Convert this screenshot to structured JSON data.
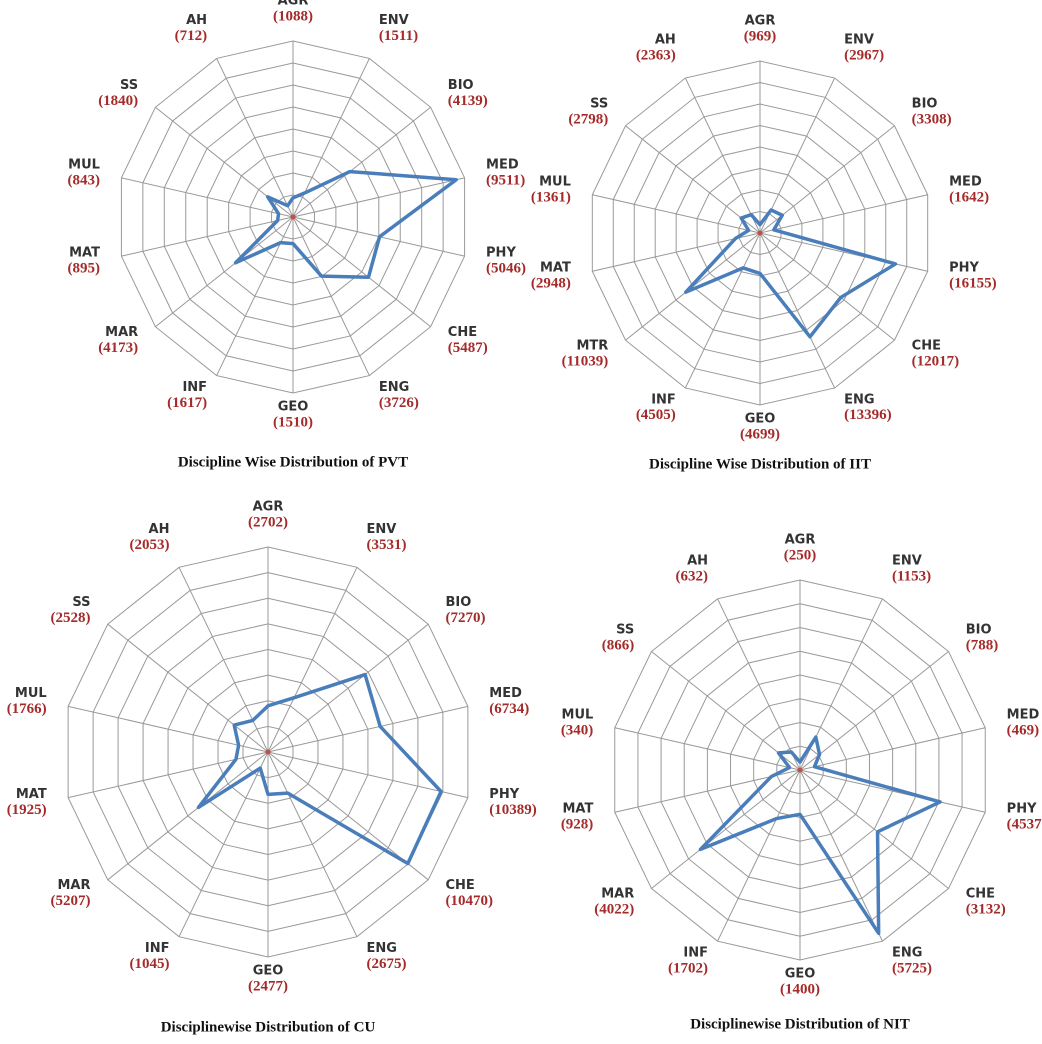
{
  "chart_data": [
    {
      "type": "radar",
      "title": "Discipline Wise Distribution of PVT",
      "categories": [
        "AGR",
        "ENV",
        "BIO",
        "MED",
        "PHY",
        "CHE",
        "ENG",
        "GEO",
        "INF",
        "MAR",
        "MAT",
        "MUL",
        "SS",
        "AH"
      ],
      "values": [
        1088,
        1511,
        4139,
        9511,
        5046,
        5487,
        3726,
        1510,
        1617,
        4173,
        895,
        843,
        1840,
        712
      ],
      "value_labels": [
        "(1088)",
        "(1511)",
        "(4139)",
        "(9511)",
        "(5046)",
        "(5487)",
        "(3726)",
        "(1510)",
        "(1617)",
        "(4173)",
        "(895)",
        "(843)",
        "(1840)",
        "(712)"
      ],
      "color": "#4a7ebb",
      "rlim": [
        0,
        10000
      ]
    },
    {
      "type": "radar",
      "title": "Discipline Wise Distribution of IIT",
      "categories": [
        "AGR",
        "ENV",
        "BIO",
        "MED",
        "PHY",
        "CHE",
        "ENG",
        "GEO",
        "INF",
        "MTR",
        "MAT",
        "MUL",
        "SS",
        "AH"
      ],
      "values": [
        969,
        2967,
        3308,
        1642,
        16155,
        12017,
        13396,
        4699,
        4505,
        11039,
        2948,
        1361,
        2798,
        2363
      ],
      "value_labels": [
        "(969)",
        "(2967)",
        "(3308)",
        "(1642)",
        "(16155)",
        "(12017)",
        "(13396)",
        "(4699)",
        "(4505)",
        "(11039)",
        "(2948)",
        "(1361)",
        "(2798)",
        "(2363)"
      ],
      "color": "#4a7ebb",
      "rlim": [
        0,
        20000
      ]
    },
    {
      "type": "radar",
      "title": "Disciplinewise Distribution of CU",
      "categories": [
        "AGR",
        "ENV",
        "BIO",
        "MED",
        "PHY",
        "CHE",
        "ENG",
        "GEO",
        "INF",
        "MAR",
        "MAT",
        "MUL",
        "SS",
        "AH"
      ],
      "values": [
        2702,
        3531,
        7270,
        6734,
        10389,
        10470,
        2675,
        2477,
        1045,
        5207,
        1925,
        1766,
        2528,
        2053
      ],
      "value_labels": [
        "(2702)",
        "(3531)",
        "(7270)",
        "(6734)",
        "(10389)",
        "(10470)",
        "(2675)",
        "(2477)",
        "(1045)",
        "(5207)",
        "(1925)",
        "(1766)",
        "(2528)",
        "(2053)"
      ],
      "color": "#4a7ebb",
      "rlim": [
        0,
        12000
      ]
    },
    {
      "type": "radar",
      "title": "Disciplinewise Distribution of NIT",
      "categories": [
        "AGR",
        "ENV",
        "BIO",
        "MED",
        "PHY",
        "CHE",
        "ENG",
        "GEO",
        "INF",
        "MAR",
        "MAT",
        "MUL",
        "SS",
        "AH"
      ],
      "values": [
        250,
        1153,
        788,
        469,
        4537,
        3132,
        5725,
        1400,
        1702,
        4022,
        928,
        340,
        866,
        632
      ],
      "value_labels": [
        "(250)",
        "(1153)",
        "(788)",
        "(469)",
        "(4537)",
        "(3132)",
        "(5725)",
        "(1400)",
        "(1702)",
        "(4022)",
        "(928)",
        "(340)",
        "(866)",
        "(632)"
      ],
      "color": "#4a7ebb",
      "rlim": [
        0,
        6000
      ]
    }
  ]
}
